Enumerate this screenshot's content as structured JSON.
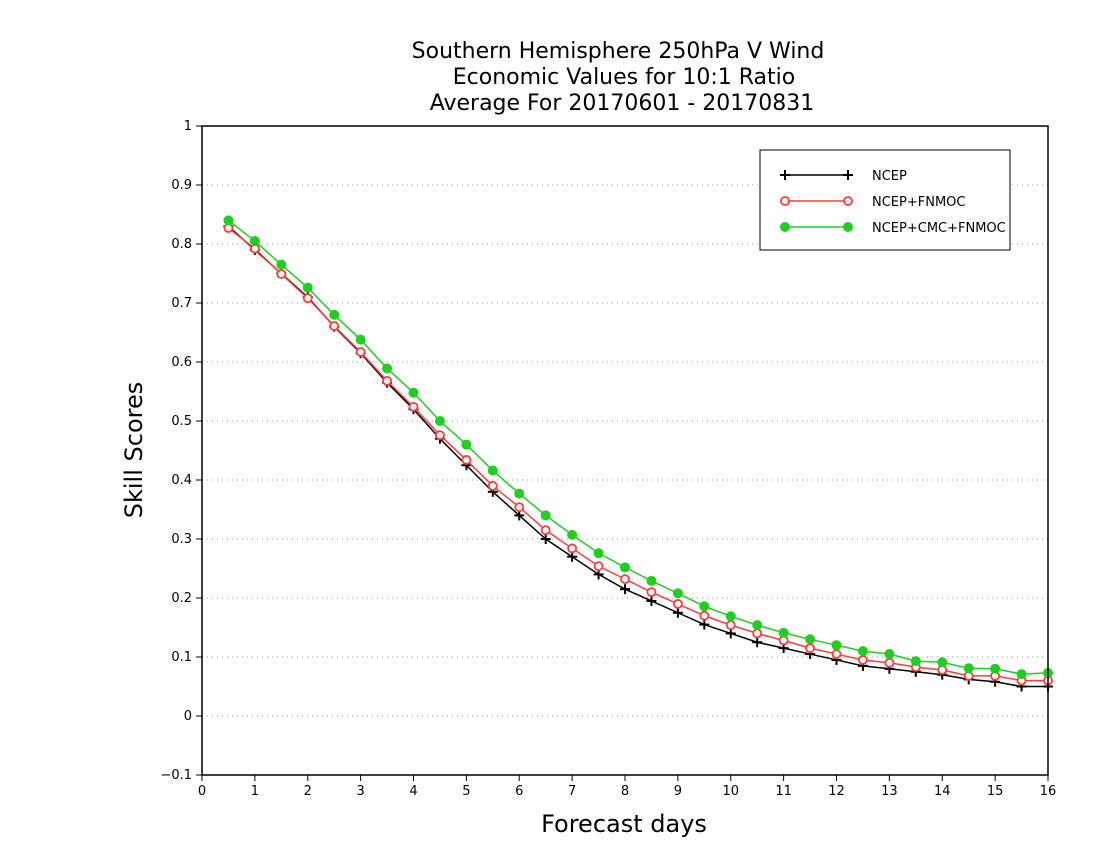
{
  "chart_data": {
    "type": "line",
    "title_lines": [
      "Southern Hemisphere 250hPa V Wind",
      "Economic Values for 10:1 Ratio",
      "Average For 20170601 - 20170831"
    ],
    "xlabel": "Forecast days",
    "ylabel": "Skill Scores",
    "xlim": [
      0,
      16
    ],
    "ylim": [
      -0.1,
      1
    ],
    "xticks": [
      0,
      1,
      2,
      3,
      4,
      5,
      6,
      7,
      8,
      9,
      10,
      11,
      12,
      13,
      14,
      15,
      16
    ],
    "yticks": [
      -0.1,
      0,
      0.1,
      0.2,
      0.3,
      0.4,
      0.5,
      0.6,
      0.7,
      0.8,
      0.9,
      1
    ],
    "ytick_labels": [
      "−0.1",
      "0",
      "0.1",
      "0.2",
      "0.3",
      "0.4",
      "0.5",
      "0.6",
      "0.7",
      "0.8",
      "0.9",
      "1"
    ],
    "grid": true,
    "legend_position": "top-right",
    "x": [
      0.5,
      1,
      1.5,
      2,
      2.5,
      3,
      3.5,
      4,
      4.5,
      5,
      5.5,
      6,
      6.5,
      7,
      7.5,
      8,
      8.5,
      9,
      9.5,
      10,
      10.5,
      11,
      11.5,
      12,
      12.5,
      13,
      13.5,
      14,
      14.5,
      15,
      15.5,
      16
    ],
    "series": [
      {
        "name": "NCEP",
        "color": "#000000",
        "marker": "plus",
        "values": [
          0.83,
          0.79,
          0.75,
          0.71,
          0.66,
          0.615,
          0.565,
          0.52,
          0.47,
          0.425,
          0.38,
          0.34,
          0.3,
          0.27,
          0.24,
          0.215,
          0.195,
          0.175,
          0.155,
          0.14,
          0.125,
          0.115,
          0.105,
          0.095,
          0.085,
          0.08,
          0.075,
          0.07,
          0.062,
          0.058,
          0.05,
          0.05
        ]
      },
      {
        "name": "NCEP+FNMOC",
        "color": "#ff3b3b",
        "marker": "open-circle",
        "values": [
          0.827,
          0.792,
          0.749,
          0.708,
          0.661,
          0.617,
          0.568,
          0.524,
          0.476,
          0.434,
          0.39,
          0.354,
          0.315,
          0.284,
          0.254,
          0.232,
          0.21,
          0.19,
          0.17,
          0.154,
          0.14,
          0.128,
          0.115,
          0.105,
          0.095,
          0.09,
          0.083,
          0.078,
          0.068,
          0.068,
          0.06,
          0.06
        ]
      },
      {
        "name": "NCEP+CMC+FNMOC",
        "color": "#22cc22",
        "marker": "filled-circle",
        "values": [
          0.84,
          0.805,
          0.765,
          0.726,
          0.68,
          0.638,
          0.589,
          0.548,
          0.5,
          0.46,
          0.416,
          0.377,
          0.34,
          0.307,
          0.276,
          0.252,
          0.229,
          0.208,
          0.186,
          0.169,
          0.154,
          0.141,
          0.13,
          0.12,
          0.11,
          0.105,
          0.093,
          0.091,
          0.081,
          0.08,
          0.071,
          0.073
        ]
      }
    ]
  }
}
